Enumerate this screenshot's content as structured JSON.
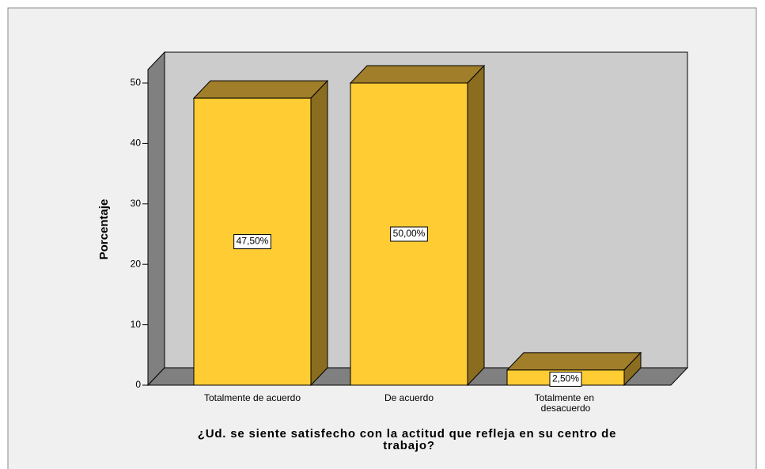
{
  "chart_data": {
    "type": "bar3d",
    "title": "¿Ud. se siente satisfecho con la actitud que refleja en su centro de trabajo?",
    "y_label": "Porcentaje",
    "categories": [
      "Totalmente de acuerdo",
      "De acuerdo",
      "Totalmente en desacuerdo"
    ],
    "values": [
      47.5,
      50,
      2.5
    ],
    "value_labels": [
      "47,50%",
      "50,00%",
      "2,50%"
    ],
    "color": "#ffcc33",
    "ylim": [
      0,
      50
    ],
    "yticks": [
      0,
      10,
      20,
      30,
      40,
      50
    ]
  }
}
